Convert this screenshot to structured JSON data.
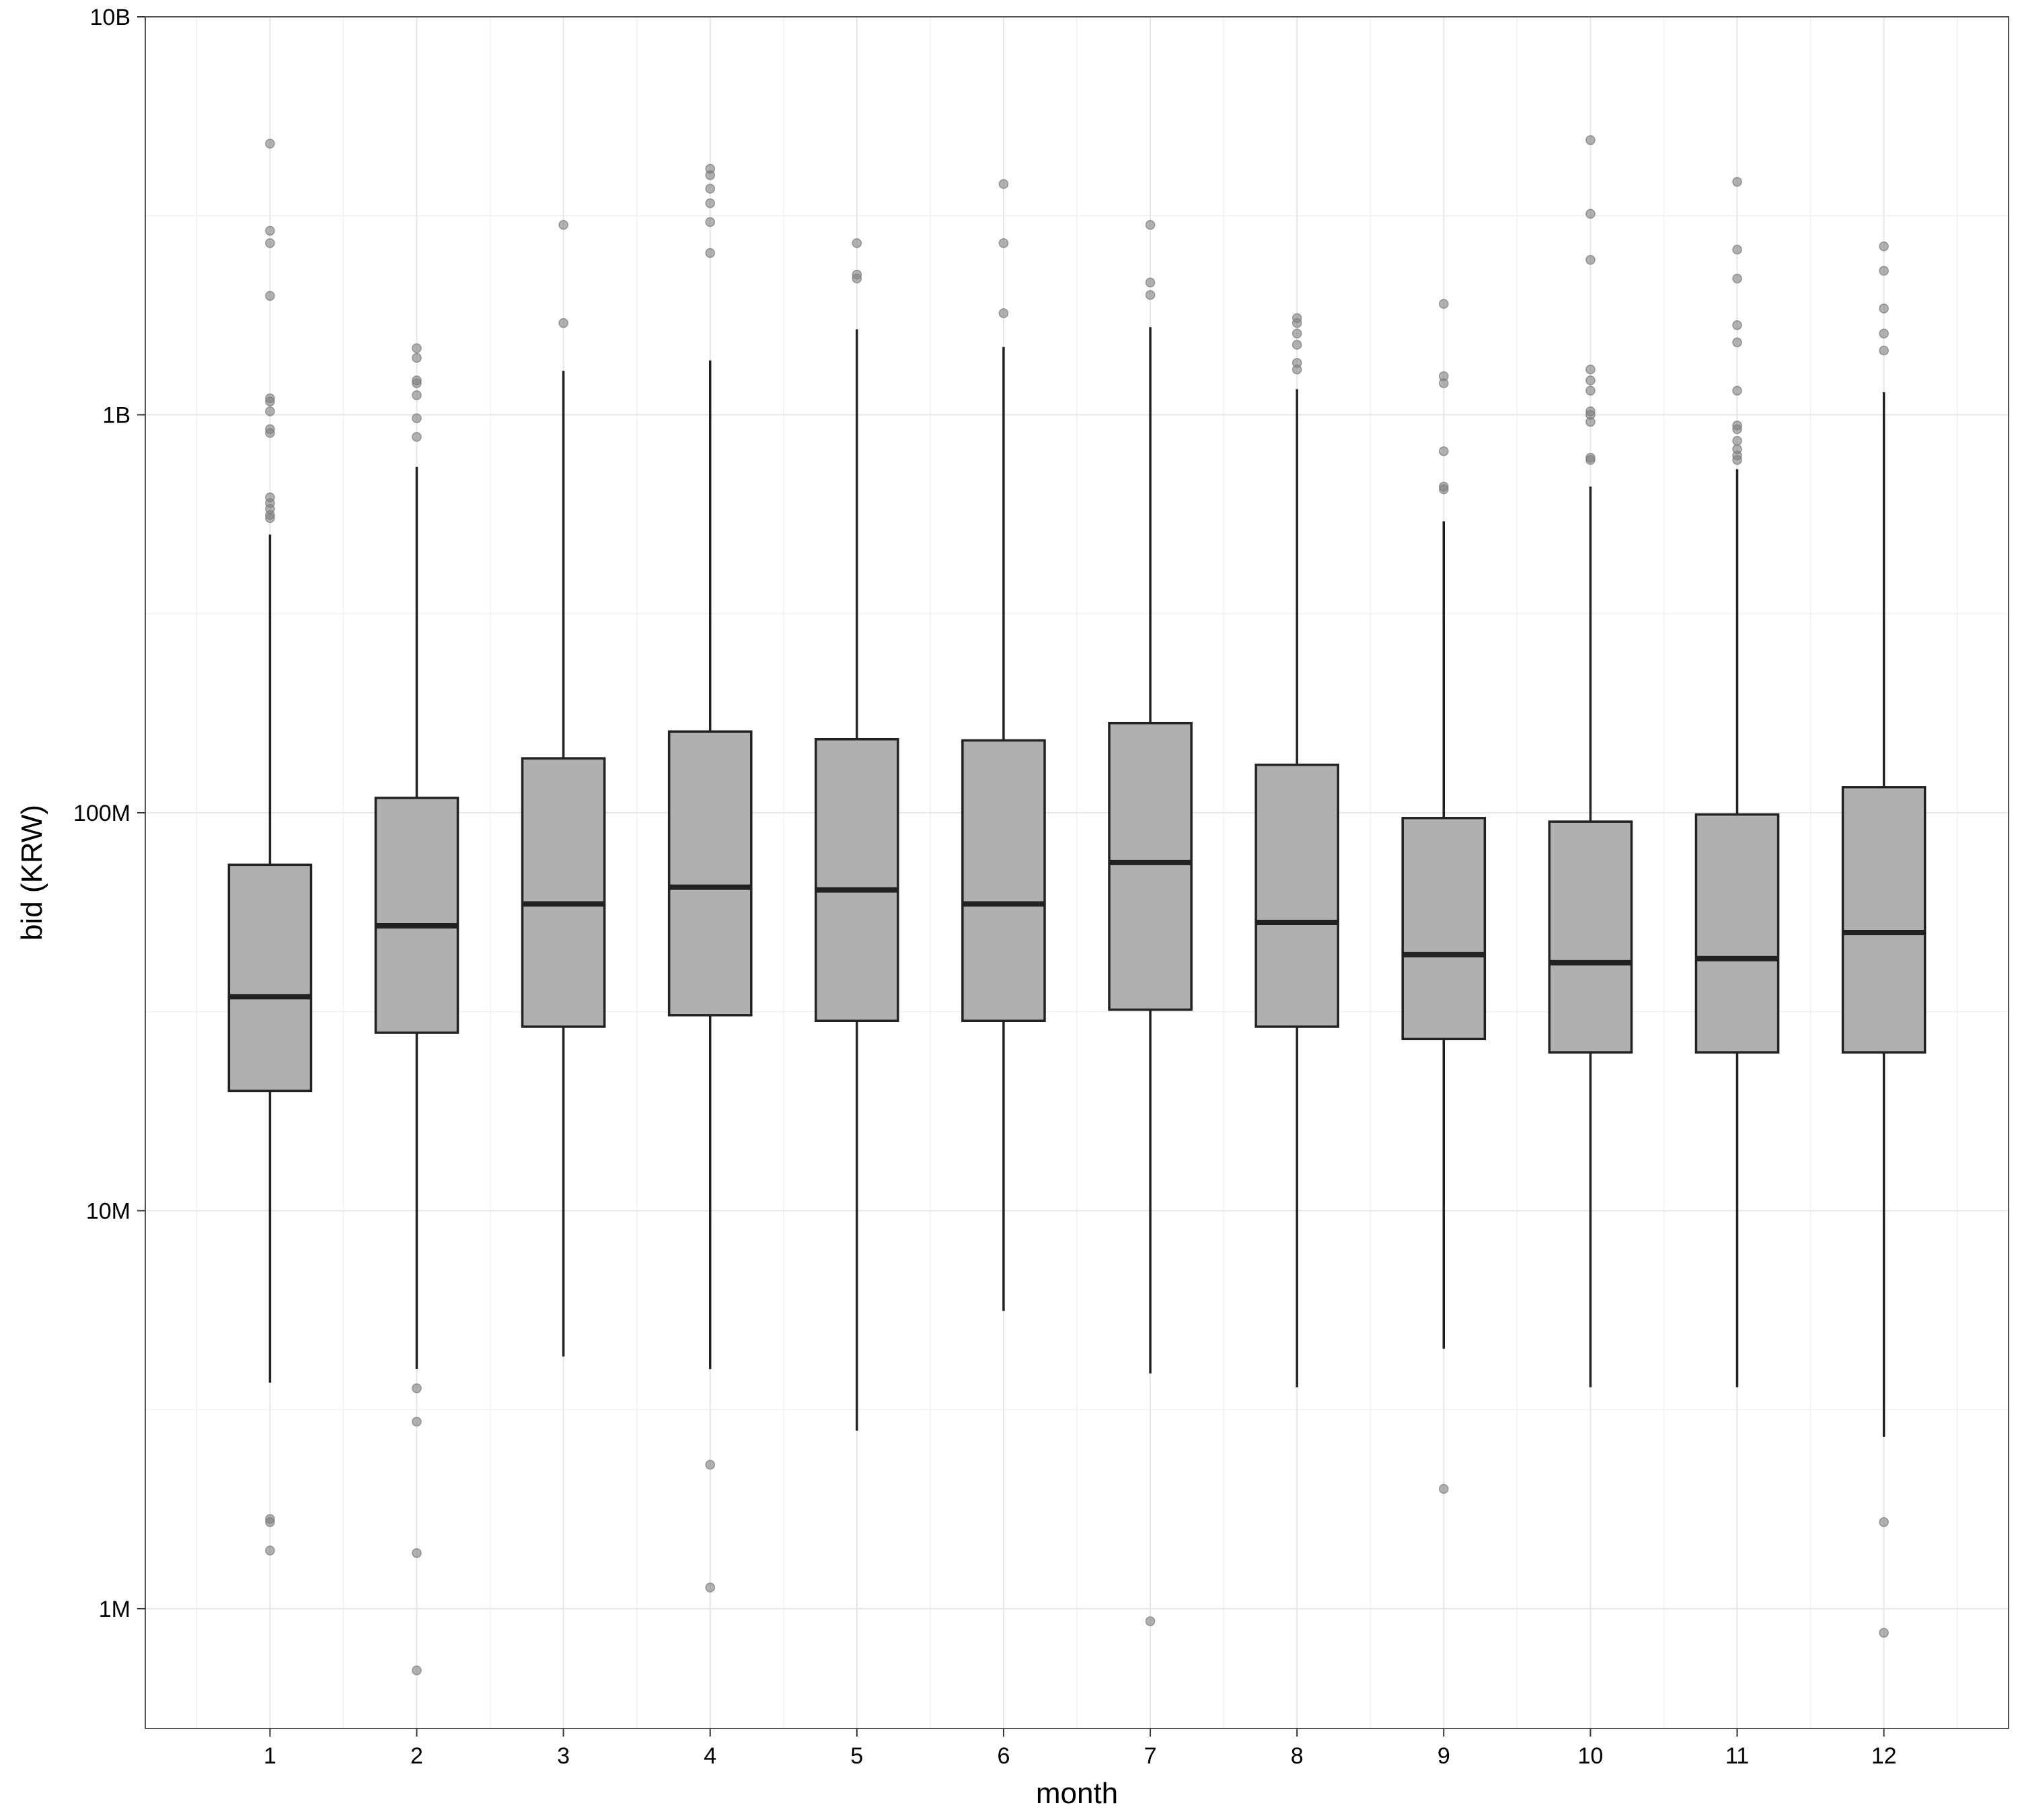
{
  "chart_data": {
    "type": "box",
    "xlabel": "month",
    "ylabel": "bid (KRW)",
    "yscale": "log10",
    "ylim": [
      500000,
      10000000000
    ],
    "yticks": [
      {
        "value": 1000000,
        "label": "1M"
      },
      {
        "value": 10000000,
        "label": "10M"
      },
      {
        "value": 100000000,
        "label": "100M"
      },
      {
        "value": 1000000000,
        "label": "1B"
      },
      {
        "value": 10000000000,
        "label": "10B"
      }
    ],
    "grid": true,
    "legend": "none",
    "colors": {
      "box_fill": "#b0b0b0",
      "box_stroke": "#222222",
      "outlier": "#7f7f7f",
      "grid": "#e6e6e6",
      "frame": "#555555"
    },
    "categories": [
      "1",
      "2",
      "3",
      "4",
      "5",
      "6",
      "7",
      "8",
      "9",
      "10",
      "11",
      "12"
    ],
    "boxes": [
      {
        "month": "1",
        "whisker_low": 3700000,
        "q1": 20000000,
        "median": 34500000,
        "q3": 74000000,
        "whisker_high": 500000000,
        "outliers": [
          1400000,
          1650000,
          1680000,
          550000000,
          560000000,
          580000000,
          600000000,
          620000000,
          900000000,
          920000000,
          1020000000,
          1080000000,
          1100000000,
          1990000000,
          2700000000,
          2900000000,
          4800000000
        ]
      },
      {
        "month": "2",
        "whisker_low": 4000000,
        "q1": 28000000,
        "median": 52000000,
        "q3": 109000000,
        "whisker_high": 740000000,
        "outliers": [
          700000,
          1380000,
          2950000,
          3580000,
          880000000,
          980000000,
          1120000000,
          1200000000,
          1220000000,
          1390000000,
          1470000000
        ]
      },
      {
        "month": "3",
        "whisker_low": 4300000,
        "q1": 29000000,
        "median": 59000000,
        "q3": 137000000,
        "whisker_high": 1290000000,
        "outliers": [
          1700000000,
          3000000000
        ]
      },
      {
        "month": "4",
        "whisker_low": 4000000,
        "q1": 31000000,
        "median": 65000000,
        "q3": 160000000,
        "whisker_high": 1370000000,
        "outliers": [
          1130000,
          2300000,
          2550000000,
          3050000000,
          3400000000,
          3700000000,
          4000000000,
          4150000000
        ]
      },
      {
        "month": "5",
        "whisker_low": 2800000,
        "q1": 30000000,
        "median": 64000000,
        "q3": 153000000,
        "whisker_high": 1640000000,
        "outliers": [
          2200000000,
          2250000000,
          2700000000
        ]
      },
      {
        "month": "6",
        "whisker_low": 5600000,
        "q1": 30000000,
        "median": 59000000,
        "q3": 152000000,
        "whisker_high": 1480000000,
        "outliers": [
          1800000000,
          2700000000,
          3800000000
        ]
      },
      {
        "month": "7",
        "whisker_low": 3900000,
        "q1": 32000000,
        "median": 75000000,
        "q3": 168000000,
        "whisker_high": 1660000000,
        "outliers": [
          930000,
          2000000000,
          2150000000,
          3000000000
        ]
      },
      {
        "month": "8",
        "whisker_low": 3600000,
        "q1": 29000000,
        "median": 53000000,
        "q3": 132000000,
        "whisker_high": 1160000000,
        "outliers": [
          1300000000,
          1350000000,
          1500000000,
          1600000000,
          1700000000,
          1750000000
        ]
      },
      {
        "month": "9",
        "whisker_low": 4500000,
        "q1": 27000000,
        "median": 44000000,
        "q3": 97000000,
        "whisker_high": 540000000,
        "outliers": [
          2000000,
          650000000,
          660000000,
          810000000,
          1200000000,
          1250000000,
          1900000000
        ]
      },
      {
        "month": "10",
        "whisker_low": 3600000,
        "q1": 25000000,
        "median": 42000000,
        "q3": 95000000,
        "whisker_high": 660000000,
        "outliers": [
          770000000,
          780000000,
          960000000,
          1000000000,
          1020000000,
          1150000000,
          1220000000,
          1300000000,
          2450000000,
          3200000000,
          4900000000
        ]
      },
      {
        "month": "11",
        "whisker_low": 3600000,
        "q1": 25000000,
        "median": 43000000,
        "q3": 99000000,
        "whisker_high": 730000000,
        "outliers": [
          770000000,
          790000000,
          820000000,
          860000000,
          920000000,
          940000000,
          1150000000,
          1520000000,
          1680000000,
          2200000000,
          2600000000,
          3850000000
        ]
      },
      {
        "month": "12",
        "whisker_low": 2700000,
        "q1": 25000000,
        "median": 50000000,
        "q3": 116000000,
        "whisker_high": 1140000000,
        "outliers": [
          870000,
          1650000,
          1450000000,
          1600000000,
          1850000000,
          2300000000,
          2650000000
        ]
      }
    ]
  }
}
